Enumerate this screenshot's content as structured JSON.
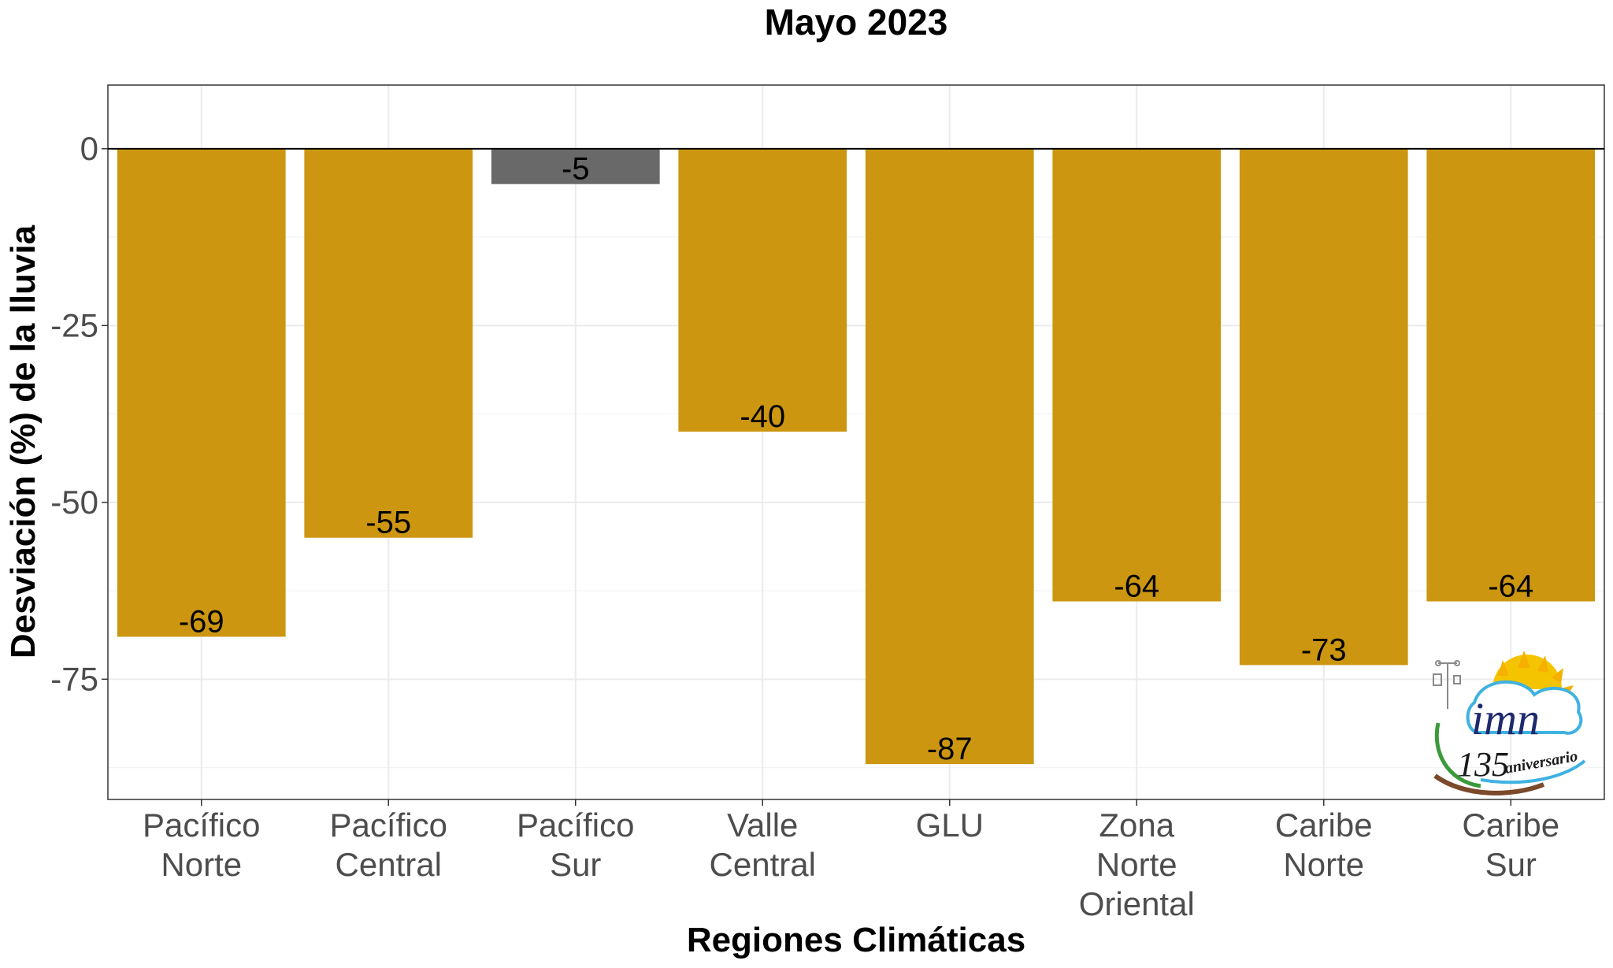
{
  "chart_data": {
    "type": "bar",
    "title": "Mayo 2023",
    "xlabel": "Regiones Climáticas",
    "ylabel": "Desviación (%) de la lluvia",
    "ylim": [
      -92,
      9
    ],
    "yticks": [
      0,
      -25,
      -50,
      -75
    ],
    "yticks_labels": [
      "0",
      "-25",
      "-50",
      "-75"
    ],
    "grid": true,
    "categories": [
      [
        "Pacífico",
        "Norte"
      ],
      [
        "Pacífico",
        "Central"
      ],
      [
        "Pacífico",
        "Sur"
      ],
      [
        "Valle",
        "Central"
      ],
      [
        "GLU"
      ],
      [
        "Zona",
        "Norte",
        "Oriental"
      ],
      [
        "Caribe",
        "Norte"
      ],
      [
        "Caribe",
        "Sur"
      ]
    ],
    "values": [
      -69,
      -55,
      -5,
      -40,
      -87,
      -64,
      -73,
      -64
    ],
    "value_labels": [
      "-69",
      "-55",
      "-5",
      "-40",
      "-87",
      "-64",
      "-73",
      "-64"
    ],
    "bar_colors": [
      "#CC9611",
      "#CC9611",
      "#696969",
      "#CC9611",
      "#CC9611",
      "#CC9611",
      "#CC9611",
      "#CC9611"
    ]
  },
  "logo": {
    "name": "imn",
    "number": "135",
    "subtitle": "aniversario"
  }
}
